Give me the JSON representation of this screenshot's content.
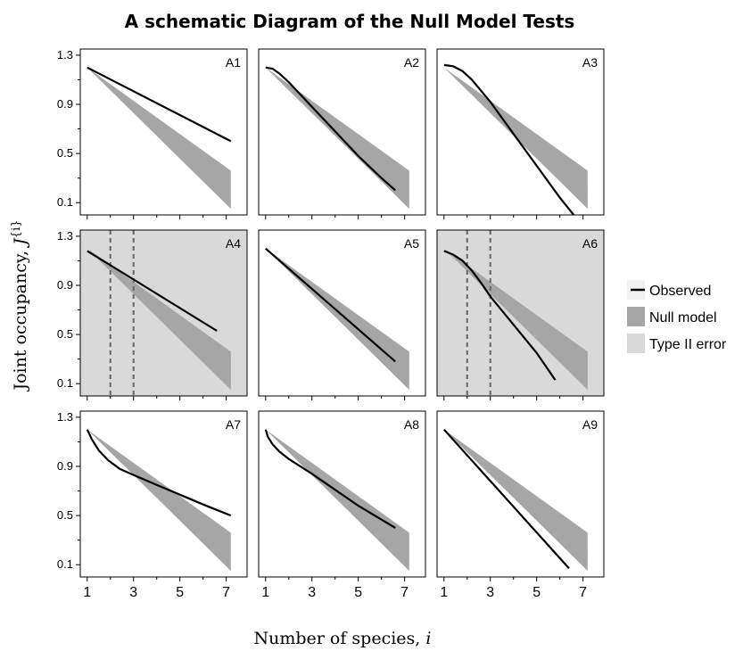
{
  "title": "A schematic Diagram of the Null Model Tests",
  "xlabel": "Number of species,",
  "xlabel_var": "i",
  "ylabel": "Joint occupancy,",
  "ylabel_var": "J",
  "ylabel_sup": "{i}",
  "colors": {
    "observed": "#000000",
    "null_model": "#a6a6a6",
    "type2": "#d9d9d9",
    "dashed": "#666666"
  },
  "legend": [
    {
      "key": "observed",
      "label": "Observed"
    },
    {
      "key": "null_model",
      "label": "Null model"
    },
    {
      "key": "type2",
      "label": "Type II error"
    }
  ],
  "chart_data": {
    "type": "line",
    "xlim": [
      0.7,
      7.9
    ],
    "ylim": [
      0.0,
      1.35
    ],
    "x_ticks": [
      1,
      3,
      5,
      7
    ],
    "y_ticks": [
      "1.3",
      "0.9",
      "0.5",
      "0.1"
    ],
    "y_tick_values": [
      1.3,
      0.9,
      0.5,
      0.1
    ],
    "legend_position": "right",
    "null_band": {
      "x": [
        1,
        7.2
      ],
      "upper": [
        1.2,
        0.36
      ],
      "lower": [
        1.2,
        0.05
      ]
    },
    "panels": [
      {
        "label": "A1",
        "type2": false,
        "dashed_x": [],
        "observed": [
          [
            1,
            1.2
          ],
          [
            7.2,
            0.6
          ]
        ]
      },
      {
        "label": "A2",
        "type2": false,
        "dashed_x": [],
        "observed": [
          [
            1,
            1.2
          ],
          [
            1.3,
            1.19
          ],
          [
            1.6,
            1.15
          ],
          [
            2,
            1.08
          ],
          [
            2.5,
            0.98
          ],
          [
            3,
            0.88
          ],
          [
            4,
            0.68
          ],
          [
            5,
            0.48
          ],
          [
            6,
            0.3
          ],
          [
            6.6,
            0.2
          ]
        ]
      },
      {
        "label": "A3",
        "type2": false,
        "dashed_x": [],
        "observed": [
          [
            1,
            1.22
          ],
          [
            1.4,
            1.21
          ],
          [
            1.8,
            1.17
          ],
          [
            2.2,
            1.1
          ],
          [
            2.6,
            1.01
          ],
          [
            3,
            0.92
          ],
          [
            4,
            0.66
          ],
          [
            5,
            0.4
          ],
          [
            6,
            0.14
          ],
          [
            6.6,
            0.0
          ]
        ]
      },
      {
        "label": "A4",
        "type2": true,
        "dashed_x": [
          2,
          3
        ],
        "observed": [
          [
            1,
            1.18
          ],
          [
            6.6,
            0.53
          ]
        ]
      },
      {
        "label": "A5",
        "type2": false,
        "dashed_x": [],
        "observed": [
          [
            1,
            1.2
          ],
          [
            6.6,
            0.28
          ]
        ]
      },
      {
        "label": "A6",
        "type2": true,
        "dashed_x": [
          2,
          3
        ],
        "observed": [
          [
            1,
            1.18
          ],
          [
            1.4,
            1.15
          ],
          [
            1.8,
            1.1
          ],
          [
            2.2,
            1.02
          ],
          [
            2.6,
            0.92
          ],
          [
            3,
            0.81
          ],
          [
            4,
            0.58
          ],
          [
            5,
            0.35
          ],
          [
            5.8,
            0.13
          ]
        ]
      },
      {
        "label": "A7",
        "type2": false,
        "dashed_x": [],
        "observed": [
          [
            1,
            1.2
          ],
          [
            1.2,
            1.12
          ],
          [
            1.5,
            1.03
          ],
          [
            1.9,
            0.95
          ],
          [
            2.4,
            0.88
          ],
          [
            3,
            0.83
          ],
          [
            4,
            0.75
          ],
          [
            5,
            0.67
          ],
          [
            6,
            0.59
          ],
          [
            7.2,
            0.5
          ]
        ]
      },
      {
        "label": "A8",
        "type2": false,
        "dashed_x": [],
        "observed": [
          [
            1,
            1.2
          ],
          [
            1.1,
            1.14
          ],
          [
            1.3,
            1.08
          ],
          [
            1.6,
            1.02
          ],
          [
            2,
            0.96
          ],
          [
            2.5,
            0.9
          ],
          [
            3,
            0.84
          ],
          [
            4,
            0.71
          ],
          [
            5,
            0.58
          ],
          [
            6.6,
            0.4
          ]
        ]
      },
      {
        "label": "A9",
        "type2": false,
        "dashed_x": [],
        "observed": [
          [
            1,
            1.2
          ],
          [
            6.4,
            0.07
          ]
        ]
      }
    ]
  }
}
